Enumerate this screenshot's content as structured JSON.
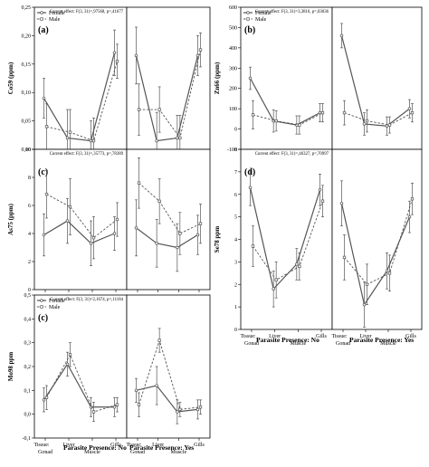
{
  "legend": {
    "female": "Female",
    "male": "Male"
  },
  "x_categories": [
    "Gonad",
    "Liver",
    "Muscle",
    "Gills"
  ],
  "x_tissue_label": "Tissue:",
  "x_titles": {
    "no": "Parasite Presence: No",
    "yes": "Parasite Presence: Yes"
  },
  "colors": {
    "female": "#555555",
    "male": "#555555"
  },
  "chart_data": [
    {
      "type": "line",
      "letter": "(a)",
      "ylabel": "Co59 (ppm)",
      "ylim": [
        0,
        0.25
      ],
      "yticks": [
        "0,00",
        "0,05",
        "0,10",
        "0,15",
        "0,20",
        "0,25"
      ],
      "effect": "Current effect: F(3, 31)=,97568, p=,41677",
      "no": {
        "female": [
          0.09,
          0.02,
          0.015,
          0.17
        ],
        "male": [
          0.04,
          0.03,
          0.015,
          0.155
        ],
        "female_err": [
          0.035,
          0.05,
          0.035,
          0.04
        ],
        "male_err": [
          0.04,
          0.04,
          0.04,
          0.03
        ]
      },
      "yes": {
        "female": [
          0.165,
          0.015,
          0.02,
          0.165
        ],
        "male": [
          0.07,
          0.07,
          0.02,
          0.175
        ],
        "female_err": [
          0.05,
          0.05,
          0.04,
          0.035
        ],
        "male_err": [
          0.045,
          0.04,
          0.04,
          0.03
        ]
      }
    },
    {
      "type": "line",
      "letter": "(c)",
      "ylabel": "As75 (ppm)",
      "ylim": [
        0,
        10
      ],
      "yticks": [
        "0",
        "2",
        "4",
        "6",
        "8",
        "10"
      ],
      "effect": "Current effect: F(3, 31)=,35773, p=,78389",
      "no": {
        "female": [
          3.9,
          4.9,
          3.3,
          4.0
        ],
        "male": [
          6.8,
          5.9,
          3.7,
          5.0
        ],
        "female_err": [
          1.5,
          1.6,
          1.6,
          1.2
        ],
        "male_err": [
          1.7,
          2.0,
          1.5,
          1.2
        ]
      },
      "yes": {
        "female": [
          4.4,
          3.3,
          3.0,
          3.9
        ],
        "male": [
          7.6,
          6.3,
          4.0,
          4.7
        ],
        "female_err": [
          2.0,
          1.7,
          1.7,
          1.4
        ],
        "male_err": [
          1.8,
          1.6,
          1.5,
          1.4
        ]
      }
    },
    {
      "type": "line",
      "letter": "(c)",
      "ylabel": "Mo98 ppm",
      "ylim": [
        -0.1,
        0.5
      ],
      "yticks": [
        "-0,1",
        "0,0",
        "0,1",
        "0,2",
        "0,3",
        "0,4",
        "0,5"
      ],
      "effect": "Current effect: F(3, 31)=2,1674, p=,11184",
      "no": {
        "female": [
          0.06,
          0.21,
          0.03,
          0.03
        ],
        "male": [
          0.07,
          0.25,
          0.01,
          0.04
        ],
        "female_err": [
          0.05,
          0.05,
          0.04,
          0.04
        ],
        "male_err": [
          0.05,
          0.05,
          0.04,
          0.03
        ]
      },
      "yes": {
        "female": [
          0.1,
          0.12,
          0.01,
          0.02
        ],
        "male": [
          0.04,
          0.31,
          0.02,
          0.03
        ],
        "female_err": [
          0.05,
          0.08,
          0.05,
          0.04
        ],
        "male_err": [
          0.05,
          0.05,
          0.03,
          0.03
        ]
      }
    },
    {
      "type": "line",
      "letter": "(b)",
      "ylabel": "Zn66 (ppm)",
      "ylim": [
        -100,
        600
      ],
      "yticks": [
        "-100",
        "0",
        "100",
        "200",
        "300",
        "400",
        "500",
        "600"
      ],
      "effect": "Current effect: F(3, 31)=3,3816, p=,03036",
      "no": {
        "female": [
          250,
          40,
          20,
          80
        ],
        "male": [
          70,
          40,
          20,
          80
        ],
        "female_err": [
          55,
          55,
          45,
          45
        ],
        "male_err": [
          70,
          50,
          45,
          45
        ]
      },
      "yes": {
        "female": [
          460,
          25,
          15,
          100
        ],
        "male": [
          80,
          40,
          20,
          80
        ],
        "female_err": [
          60,
          55,
          45,
          45
        ],
        "male_err": [
          60,
          55,
          40,
          45
        ]
      }
    },
    {
      "type": "line",
      "letter": "(d)",
      "ylabel": "Se78 ppm",
      "ylim": [
        0,
        8
      ],
      "yticks": [
        "0",
        "1",
        "2",
        "3",
        "4",
        "5",
        "6",
        "7",
        "8"
      ],
      "effect": "Current effect: F(3, 31)=,46327, p=,70997",
      "no": {
        "female": [
          6.3,
          1.8,
          2.9,
          6.2
        ],
        "male": [
          3.7,
          2.2,
          2.8,
          5.7
        ],
        "female_err": [
          0.8,
          0.8,
          0.7,
          0.7
        ],
        "male_err": [
          0.9,
          0.8,
          0.6,
          0.7
        ]
      },
      "yes": {
        "female": [
          5.6,
          1.1,
          2.6,
          5.0
        ],
        "male": [
          3.2,
          2.0,
          2.5,
          5.8
        ],
        "female_err": [
          1.0,
          1.0,
          0.8,
          0.7
        ],
        "male_err": [
          1.0,
          0.9,
          0.8,
          0.7
        ]
      }
    }
  ]
}
